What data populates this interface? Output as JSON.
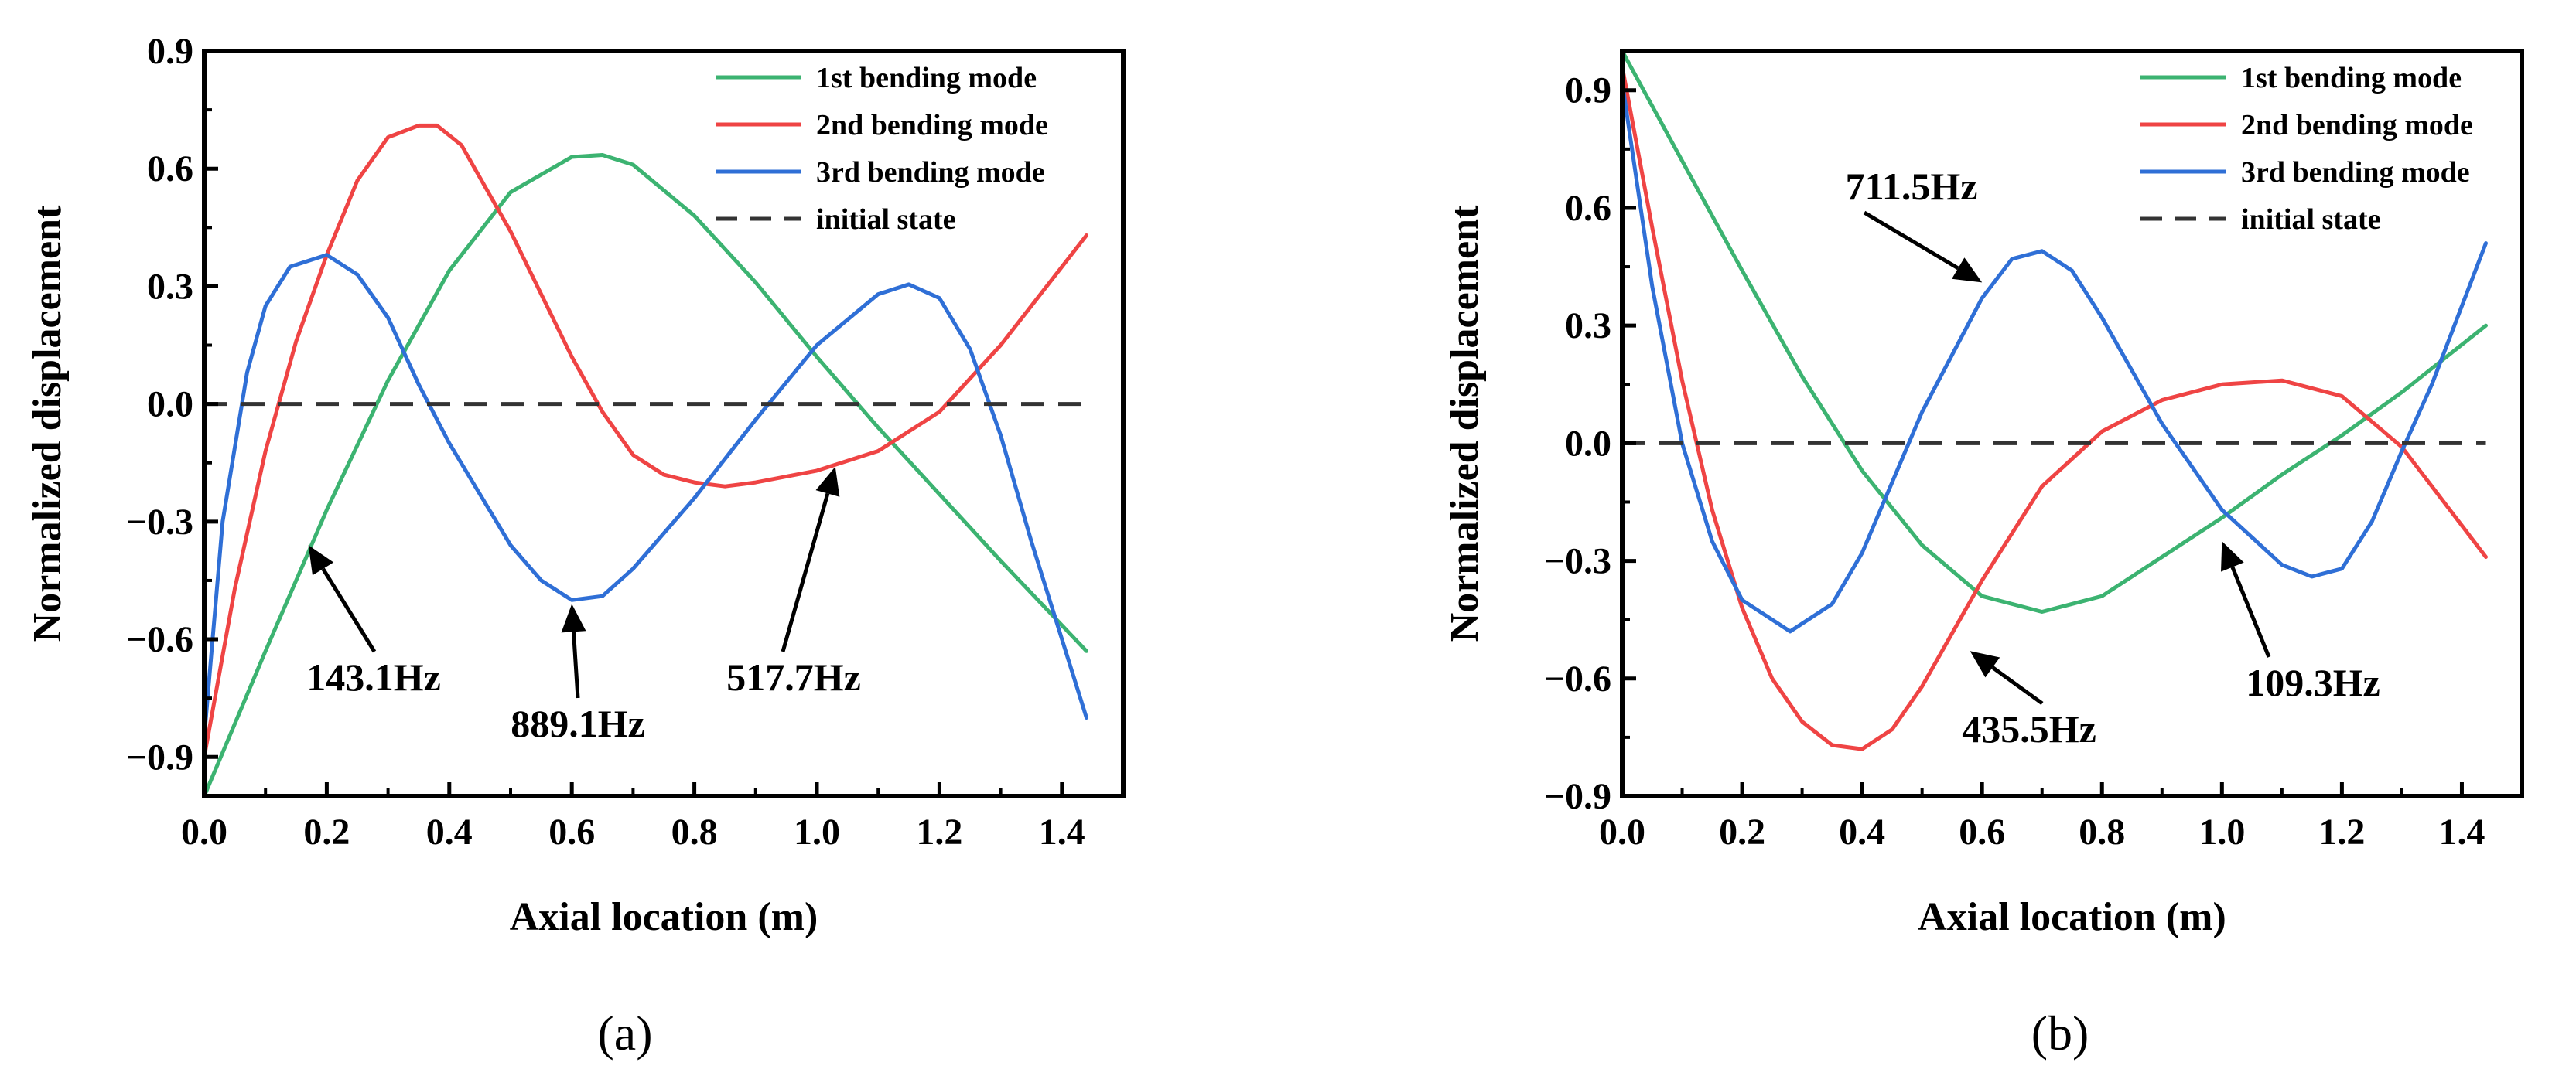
{
  "chart_data": [
    {
      "type": "line",
      "panel_label": "(a)",
      "xlabel": "Axial location (m)",
      "ylabel": "Normalized displacement",
      "xlim": [
        0.0,
        1.5
      ],
      "ylim": [
        -1.0,
        0.9
      ],
      "x_ticks": [
        0.0,
        0.2,
        0.4,
        0.6,
        0.8,
        1.0,
        1.2,
        1.4
      ],
      "x_tick_labels": [
        "0.0",
        "0.2",
        "0.4",
        "0.6",
        "0.8",
        "1.0",
        "1.2",
        "1.4"
      ],
      "y_ticks": [
        -0.9,
        -0.6,
        -0.3,
        0.0,
        0.3,
        0.6,
        0.9
      ],
      "y_tick_labels": [
        "−0.9",
        "−0.6",
        "−0.3",
        "0.0",
        "0.3",
        "0.6",
        "0.9"
      ],
      "grid": false,
      "legend_position": "top-right",
      "series": [
        {
          "name": "1st bending mode",
          "color": "#3CB371",
          "x": [
            0.0,
            0.1,
            0.2,
            0.3,
            0.4,
            0.5,
            0.6,
            0.65,
            0.7,
            0.8,
            0.9,
            1.0,
            1.1,
            1.2,
            1.3,
            1.44
          ],
          "y": [
            -1.0,
            -0.63,
            -0.27,
            0.06,
            0.34,
            0.54,
            0.63,
            0.635,
            0.61,
            0.48,
            0.31,
            0.12,
            -0.06,
            -0.23,
            -0.4,
            -0.63
          ]
        },
        {
          "name": "2nd bending mode",
          "color": "#EF4444",
          "x": [
            0.0,
            0.05,
            0.1,
            0.15,
            0.2,
            0.25,
            0.3,
            0.35,
            0.38,
            0.42,
            0.5,
            0.6,
            0.65,
            0.7,
            0.75,
            0.8,
            0.85,
            0.9,
            1.0,
            1.1,
            1.2,
            1.3,
            1.44
          ],
          "y": [
            -0.9,
            -0.47,
            -0.12,
            0.16,
            0.38,
            0.57,
            0.68,
            0.71,
            0.71,
            0.66,
            0.44,
            0.12,
            -0.02,
            -0.13,
            -0.18,
            -0.2,
            -0.21,
            -0.2,
            -0.17,
            -0.12,
            -0.02,
            0.15,
            0.43
          ]
        },
        {
          "name": "3rd bending mode",
          "color": "#2F6FD6",
          "x": [
            0.0,
            0.03,
            0.07,
            0.1,
            0.14,
            0.2,
            0.25,
            0.3,
            0.35,
            0.4,
            0.5,
            0.55,
            0.6,
            0.65,
            0.7,
            0.8,
            0.9,
            1.0,
            1.1,
            1.15,
            1.2,
            1.25,
            1.3,
            1.35,
            1.44
          ],
          "y": [
            -0.85,
            -0.3,
            0.08,
            0.25,
            0.35,
            0.38,
            0.33,
            0.22,
            0.05,
            -0.1,
            -0.36,
            -0.45,
            -0.5,
            -0.49,
            -0.42,
            -0.24,
            -0.04,
            0.15,
            0.28,
            0.305,
            0.27,
            0.14,
            -0.08,
            -0.35,
            -0.8
          ]
        },
        {
          "name": "initial state",
          "color": "#333333",
          "dashed": true,
          "x": [
            0.0,
            1.44
          ],
          "y": [
            0.0,
            0.0
          ]
        }
      ],
      "annotations": [
        {
          "text": "143.1Hz",
          "arrow_to": [
            0.17,
            -0.36
          ]
        },
        {
          "text": "889.1Hz",
          "arrow_to": [
            0.6,
            -0.51
          ]
        },
        {
          "text": "517.7Hz",
          "arrow_to": [
            1.03,
            -0.16
          ]
        }
      ]
    },
    {
      "type": "line",
      "panel_label": "(b)",
      "xlabel": "Axial location (m)",
      "ylabel": "Normalized displacement",
      "xlim": [
        0.0,
        1.5
      ],
      "ylim": [
        -0.9,
        1.0
      ],
      "x_ticks": [
        0.0,
        0.2,
        0.4,
        0.6,
        0.8,
        1.0,
        1.2,
        1.4
      ],
      "x_tick_labels": [
        "0.0",
        "0.2",
        "0.4",
        "0.6",
        "0.8",
        "1.0",
        "1.2",
        "1.4"
      ],
      "y_ticks": [
        -0.9,
        -0.6,
        -0.3,
        0.0,
        0.3,
        0.6,
        0.9
      ],
      "y_tick_labels": [
        "−0.9",
        "−0.6",
        "−0.3",
        "0.0",
        "0.3",
        "0.6",
        "0.9"
      ],
      "grid": false,
      "legend_position": "top-right",
      "series": [
        {
          "name": "1st bending mode",
          "color": "#3CB371",
          "x": [
            0.0,
            0.1,
            0.2,
            0.3,
            0.4,
            0.5,
            0.6,
            0.7,
            0.8,
            0.9,
            1.0,
            1.1,
            1.2,
            1.3,
            1.44
          ],
          "y": [
            1.0,
            0.72,
            0.44,
            0.17,
            -0.07,
            -0.26,
            -0.39,
            -0.43,
            -0.39,
            -0.29,
            -0.19,
            -0.08,
            0.02,
            0.13,
            0.3
          ]
        },
        {
          "name": "2nd bending mode",
          "color": "#EF4444",
          "x": [
            0.0,
            0.05,
            0.1,
            0.15,
            0.2,
            0.25,
            0.3,
            0.35,
            0.4,
            0.45,
            0.5,
            0.6,
            0.7,
            0.8,
            0.9,
            1.0,
            1.1,
            1.2,
            1.3,
            1.44
          ],
          "y": [
            0.96,
            0.55,
            0.16,
            -0.17,
            -0.42,
            -0.6,
            -0.71,
            -0.77,
            -0.78,
            -0.73,
            -0.62,
            -0.35,
            -0.11,
            0.03,
            0.11,
            0.15,
            0.16,
            0.12,
            -0.01,
            -0.29
          ]
        },
        {
          "name": "3rd bending mode",
          "color": "#2F6FD6",
          "x": [
            0.0,
            0.05,
            0.1,
            0.15,
            0.2,
            0.28,
            0.35,
            0.4,
            0.45,
            0.5,
            0.6,
            0.65,
            0.7,
            0.75,
            0.8,
            0.9,
            1.0,
            1.1,
            1.15,
            1.2,
            1.25,
            1.3,
            1.35,
            1.44
          ],
          "y": [
            0.92,
            0.4,
            0.0,
            -0.25,
            -0.4,
            -0.48,
            -0.41,
            -0.28,
            -0.1,
            0.08,
            0.37,
            0.47,
            0.49,
            0.44,
            0.32,
            0.05,
            -0.17,
            -0.31,
            -0.34,
            -0.32,
            -0.2,
            -0.02,
            0.15,
            0.51
          ]
        },
        {
          "name": "initial state",
          "color": "#333333",
          "dashed": true,
          "x": [
            0.0,
            1.44
          ],
          "y": [
            0.0,
            0.0
          ]
        }
      ],
      "annotations": [
        {
          "text": "711.5Hz",
          "arrow_to": [
            0.6,
            0.41
          ]
        },
        {
          "text": "435.5Hz",
          "arrow_to": [
            0.58,
            -0.53
          ]
        },
        {
          "text": "109.3Hz",
          "arrow_to": [
            1.0,
            -0.25
          ]
        }
      ]
    }
  ]
}
